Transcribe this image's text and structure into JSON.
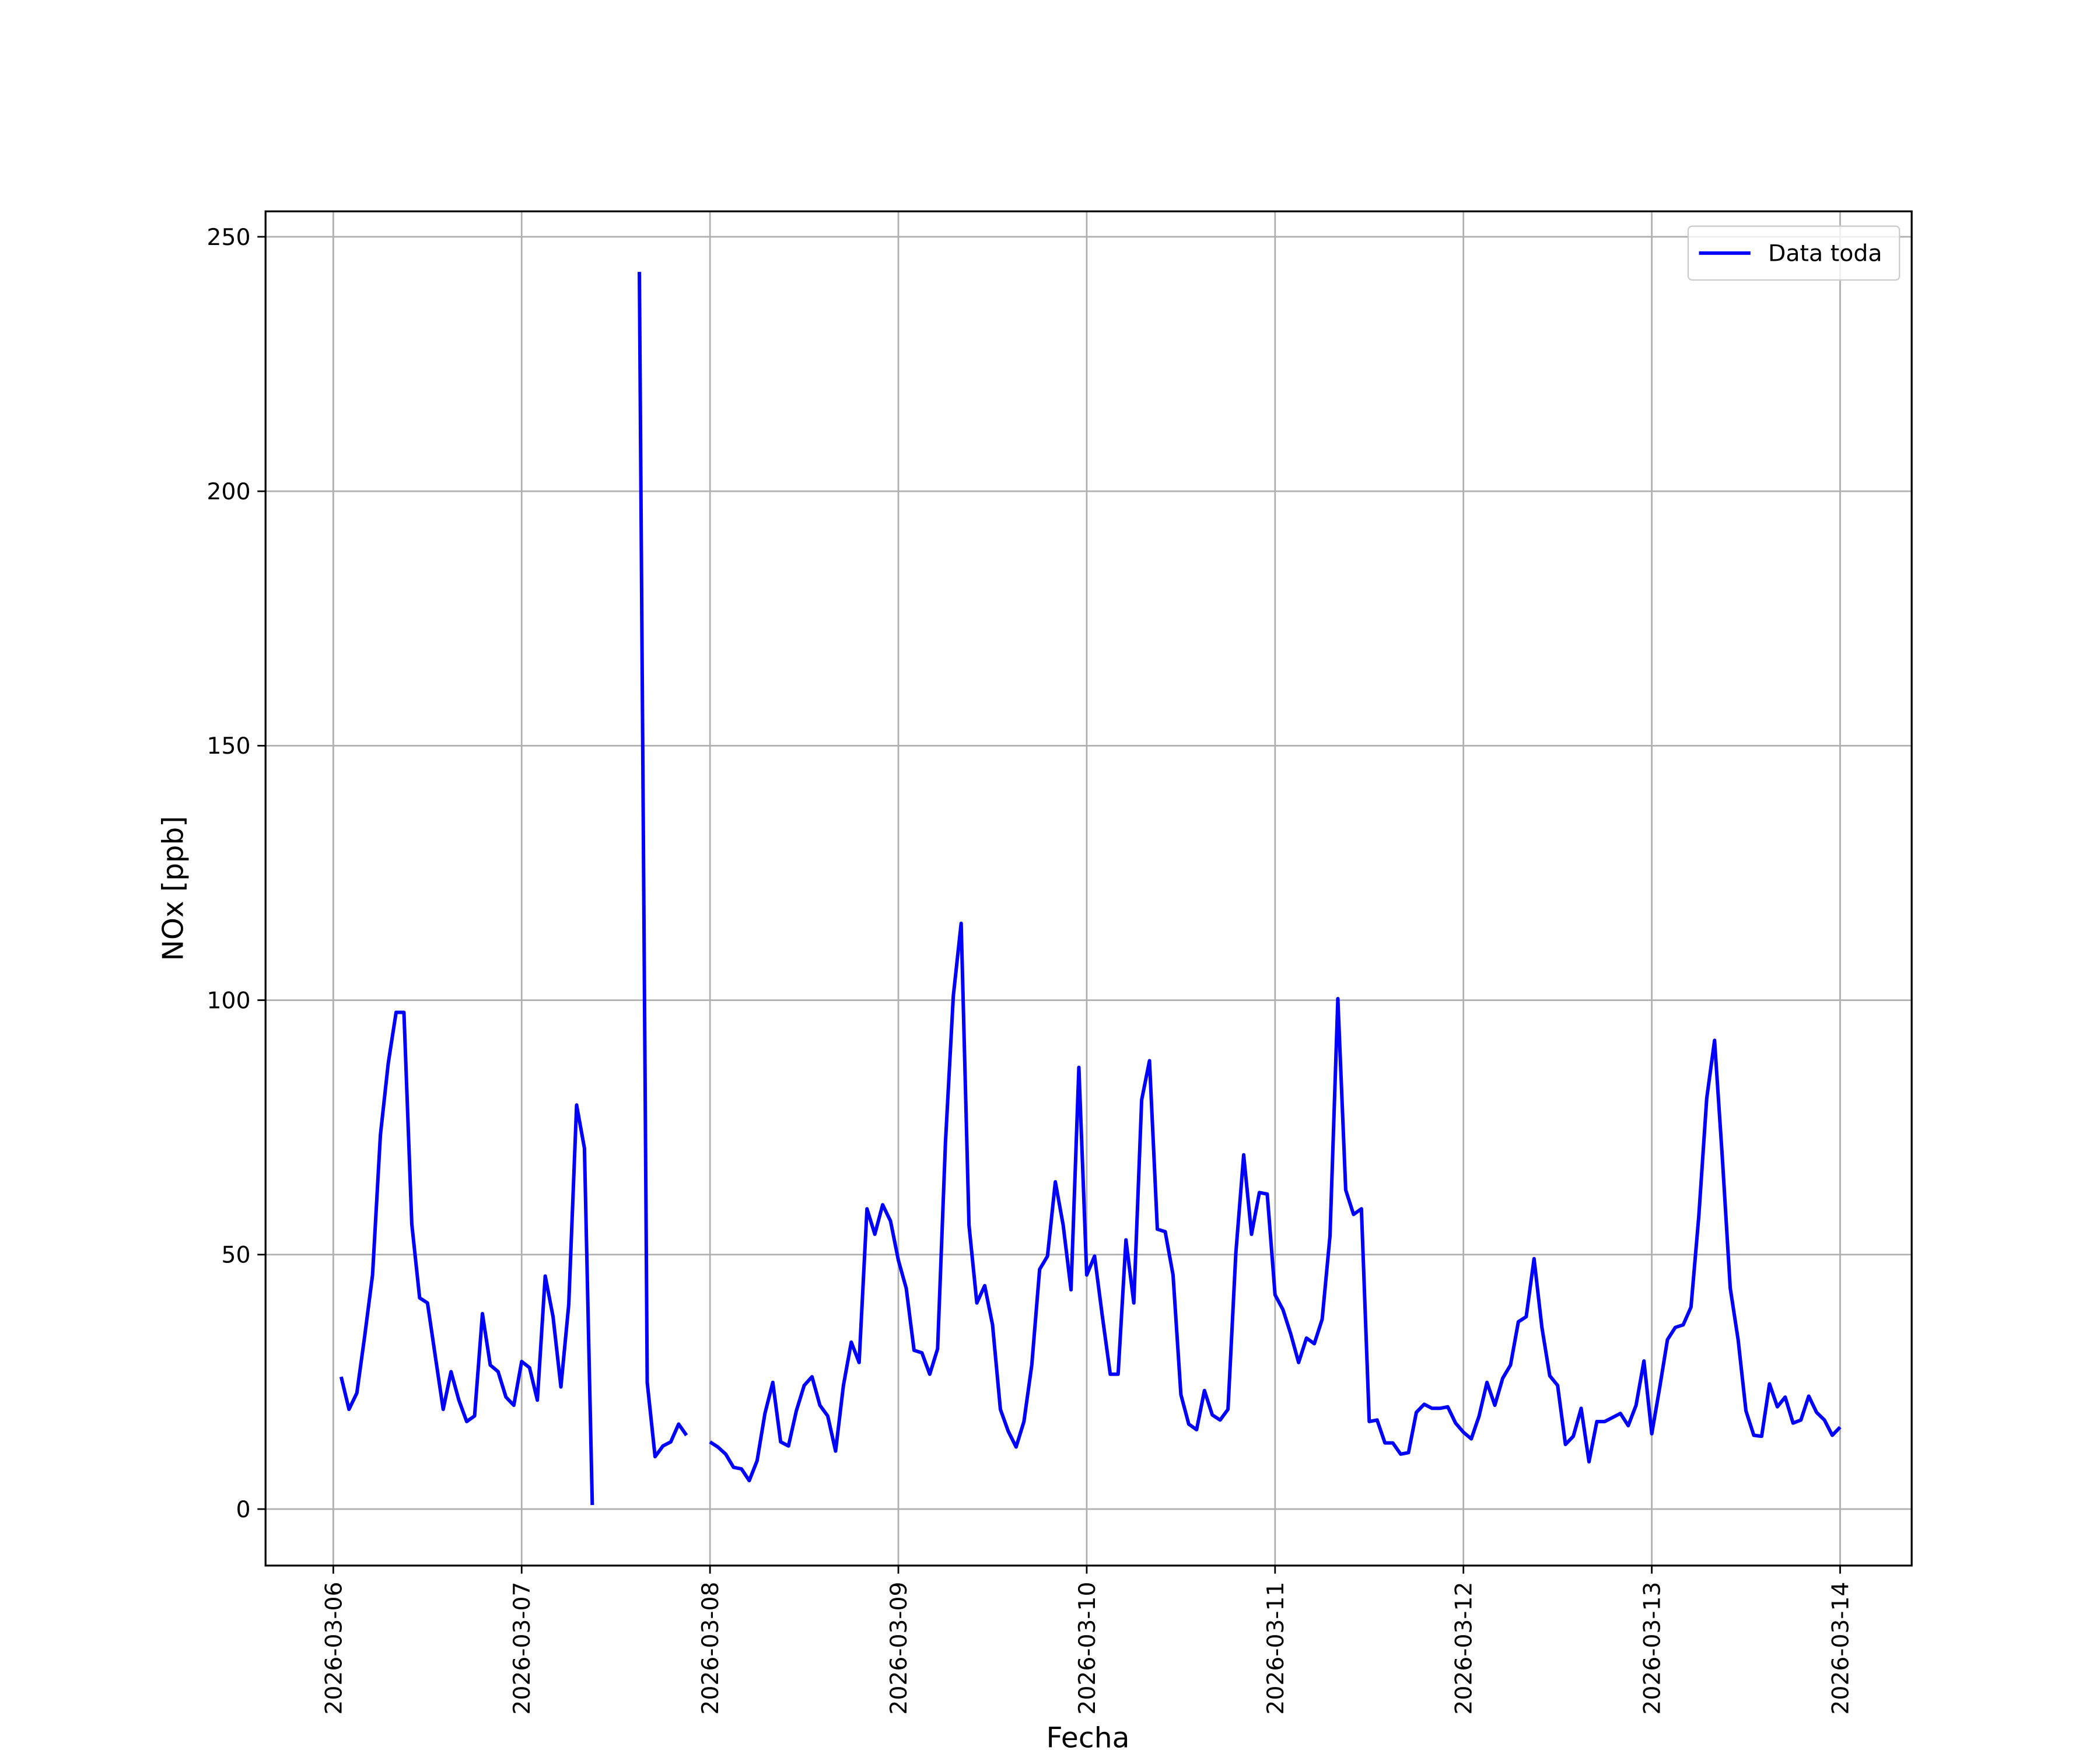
{
  "chart_data": {
    "type": "line",
    "xlabel": "Fecha",
    "ylabel": "NOx [ppb]",
    "x": [
      "2026-03-06 01:00",
      "2026-03-06 02:00",
      "2026-03-06 03:00",
      "2026-03-06 04:00",
      "2026-03-06 05:00",
      "2026-03-06 06:00",
      "2026-03-06 07:00",
      "2026-03-06 08:00",
      "2026-03-06 09:00",
      "2026-03-06 10:00",
      "2026-03-06 11:00",
      "2026-03-06 12:00",
      "2026-03-06 13:00",
      "2026-03-06 14:00",
      "2026-03-06 15:00",
      "2026-03-06 16:00",
      "2026-03-06 17:00",
      "2026-03-06 18:00",
      "2026-03-06 19:00",
      "2026-03-06 20:00",
      "2026-03-06 21:00",
      "2026-03-06 22:00",
      "2026-03-06 23:00",
      "2026-03-07 00:00",
      "2026-03-07 01:00",
      "2026-03-07 02:00",
      "2026-03-07 03:00",
      "2026-03-07 04:00",
      "2026-03-07 05:00",
      "2026-03-07 06:00",
      "2026-03-07 07:00",
      "2026-03-07 08:00",
      "2026-03-07 09:00",
      "2026-03-07 10:00",
      "2026-03-07 11:00",
      "2026-03-07 12:00",
      "2026-03-07 13:00",
      "2026-03-07 14:00",
      "2026-03-07 15:00",
      "2026-03-07 16:00",
      "2026-03-07 17:00",
      "2026-03-07 18:00",
      "2026-03-07 19:00",
      "2026-03-07 20:00",
      "2026-03-07 21:00",
      "2026-03-07 22:00",
      "2026-03-07 23:00",
      "2026-03-08 00:00",
      "2026-03-08 01:00",
      "2026-03-08 02:00",
      "2026-03-08 03:00",
      "2026-03-08 04:00",
      "2026-03-08 05:00",
      "2026-03-08 06:00",
      "2026-03-08 07:00",
      "2026-03-08 08:00",
      "2026-03-08 09:00",
      "2026-03-08 10:00",
      "2026-03-08 11:00",
      "2026-03-08 12:00",
      "2026-03-08 13:00",
      "2026-03-08 14:00",
      "2026-03-08 15:00",
      "2026-03-08 16:00",
      "2026-03-08 17:00",
      "2026-03-08 18:00",
      "2026-03-08 19:00",
      "2026-03-08 20:00",
      "2026-03-08 21:00",
      "2026-03-08 22:00",
      "2026-03-08 23:00",
      "2026-03-09 00:00",
      "2026-03-09 01:00",
      "2026-03-09 02:00",
      "2026-03-09 03:00",
      "2026-03-09 04:00",
      "2026-03-09 05:00",
      "2026-03-09 06:00",
      "2026-03-09 07:00",
      "2026-03-09 08:00",
      "2026-03-09 09:00",
      "2026-03-09 10:00",
      "2026-03-09 11:00",
      "2026-03-09 12:00",
      "2026-03-09 13:00",
      "2026-03-09 14:00",
      "2026-03-09 15:00",
      "2026-03-09 16:00",
      "2026-03-09 17:00",
      "2026-03-09 18:00",
      "2026-03-09 19:00",
      "2026-03-09 20:00",
      "2026-03-09 21:00",
      "2026-03-09 22:00",
      "2026-03-09 23:00",
      "2026-03-10 00:00",
      "2026-03-10 01:00",
      "2026-03-10 02:00",
      "2026-03-10 03:00",
      "2026-03-10 04:00",
      "2026-03-10 05:00",
      "2026-03-10 06:00",
      "2026-03-10 07:00",
      "2026-03-10 08:00",
      "2026-03-10 09:00",
      "2026-03-10 10:00",
      "2026-03-10 11:00",
      "2026-03-10 12:00",
      "2026-03-10 13:00",
      "2026-03-10 14:00",
      "2026-03-10 15:00",
      "2026-03-10 16:00",
      "2026-03-10 17:00",
      "2026-03-10 18:00",
      "2026-03-10 19:00",
      "2026-03-10 20:00",
      "2026-03-10 21:00",
      "2026-03-10 22:00",
      "2026-03-10 23:00",
      "2026-03-11 00:00",
      "2026-03-11 01:00",
      "2026-03-11 02:00",
      "2026-03-11 03:00",
      "2026-03-11 04:00",
      "2026-03-11 05:00",
      "2026-03-11 06:00",
      "2026-03-11 07:00",
      "2026-03-11 08:00",
      "2026-03-11 09:00",
      "2026-03-11 10:00",
      "2026-03-11 11:00",
      "2026-03-11 12:00",
      "2026-03-11 13:00",
      "2026-03-11 14:00",
      "2026-03-11 15:00",
      "2026-03-11 16:00",
      "2026-03-11 17:00",
      "2026-03-11 18:00",
      "2026-03-11 19:00",
      "2026-03-11 20:00",
      "2026-03-11 21:00",
      "2026-03-11 22:00",
      "2026-03-11 23:00",
      "2026-03-12 00:00",
      "2026-03-12 01:00",
      "2026-03-12 02:00",
      "2026-03-12 03:00",
      "2026-03-12 04:00",
      "2026-03-12 05:00",
      "2026-03-12 06:00",
      "2026-03-12 07:00",
      "2026-03-12 08:00",
      "2026-03-12 09:00",
      "2026-03-12 10:00",
      "2026-03-12 11:00",
      "2026-03-12 12:00",
      "2026-03-12 13:00",
      "2026-03-12 14:00",
      "2026-03-12 15:00",
      "2026-03-12 16:00",
      "2026-03-12 17:00",
      "2026-03-12 18:00",
      "2026-03-12 19:00",
      "2026-03-12 20:00",
      "2026-03-12 21:00",
      "2026-03-12 22:00",
      "2026-03-12 23:00",
      "2026-03-13 00:00",
      "2026-03-13 01:00",
      "2026-03-13 02:00",
      "2026-03-13 03:00",
      "2026-03-13 04:00",
      "2026-03-13 05:00",
      "2026-03-13 06:00",
      "2026-03-13 07:00",
      "2026-03-13 08:00",
      "2026-03-13 09:00",
      "2026-03-13 10:00",
      "2026-03-13 11:00",
      "2026-03-13 12:00",
      "2026-03-13 13:00",
      "2026-03-13 14:00",
      "2026-03-13 15:00",
      "2026-03-13 16:00",
      "2026-03-13 17:00",
      "2026-03-13 18:00",
      "2026-03-13 19:00",
      "2026-03-13 20:00",
      "2026-03-13 21:00",
      "2026-03-13 22:00",
      "2026-03-13 23:00",
      "2026-03-14 00:00"
    ],
    "series": [
      {
        "name": "Data toda",
        "color": "#0000ff",
        "values": [
          26,
          19.6,
          22.8,
          34,
          46,
          73.5,
          87.6,
          97.6,
          97.6,
          56,
          41.5,
          40.5,
          30,
          19.6,
          27,
          21.4,
          17.2,
          18.3,
          38.4,
          28.3,
          27,
          22,
          20.4,
          29,
          27.8,
          21.4,
          45.8,
          37.8,
          24,
          40.2,
          79.4,
          70.9,
          0.8,
          null,
          null,
          null,
          null,
          null,
          243.1,
          24.9,
          10.3,
          12.4,
          13.2,
          16.7,
          14.5,
          null,
          null,
          13.2,
          12.2,
          10.8,
          8.2,
          7.9,
          5.6,
          9.5,
          18.8,
          24.9,
          13.2,
          12.4,
          19.3,
          24.3,
          26,
          20.4,
          18.3,
          11.4,
          24.3,
          32.8,
          28.8,
          59,
          54,
          59.8,
          56.6,
          48.9,
          43.4,
          31.2,
          30.7,
          26.5,
          31.5,
          72,
          100.8,
          115.1,
          55.8,
          40.5,
          43.9,
          36.2,
          19.6,
          15.3,
          12.2,
          17.2,
          28.3,
          47.1,
          49.7,
          64.3,
          55.8,
          43.1,
          86.8,
          46,
          49.7,
          37.8,
          26.5,
          26.5,
          52.9,
          40.5,
          80.4,
          88.1,
          55,
          54.5,
          46,
          22.5,
          16.7,
          15.6,
          23.3,
          18.5,
          17.5,
          19.6,
          50.3,
          69.6,
          54,
          62.2,
          61.9,
          42.1,
          39.2,
          34.4,
          28.8,
          33.6,
          32.5,
          37.3,
          53.7,
          100.3,
          62.7,
          57.9,
          59,
          17.2,
          17.5,
          13,
          13,
          10.8,
          11.1,
          19,
          20.6,
          19.8,
          19.8,
          20.1,
          16.9,
          15.1,
          13.8,
          18.3,
          24.9,
          20.4,
          25.7,
          28.3,
          36.8,
          37.8,
          49.2,
          35.7,
          26.2,
          24.3,
          12.7,
          14.3,
          19.8,
          9.3,
          17.2,
          17.2,
          18,
          18.8,
          16.4,
          20.4,
          29.1,
          14.8,
          23.8,
          33.3,
          35.7,
          36.2,
          39.7,
          57.7,
          80.7,
          92.1,
          68.8,
          43.4,
          33.3,
          19.3,
          14.5,
          14.3,
          24.6,
          20.1,
          22,
          16.9,
          17.5,
          22.2,
          19,
          17.5,
          14.5,
          16.1
        ]
      }
    ],
    "xlim": [
      "2026-03-05 15:22",
      "2026-03-14 09:07"
    ],
    "xticks": [
      "2026-03-06",
      "2026-03-07",
      "2026-03-08",
      "2026-03-09",
      "2026-03-10",
      "2026-03-11",
      "2026-03-12",
      "2026-03-13",
      "2026-03-14"
    ],
    "ylim": [
      -11.1,
      255
    ],
    "yticks": [
      0,
      50,
      100,
      150,
      200,
      250
    ],
    "grid": true,
    "legend": "upper right"
  }
}
